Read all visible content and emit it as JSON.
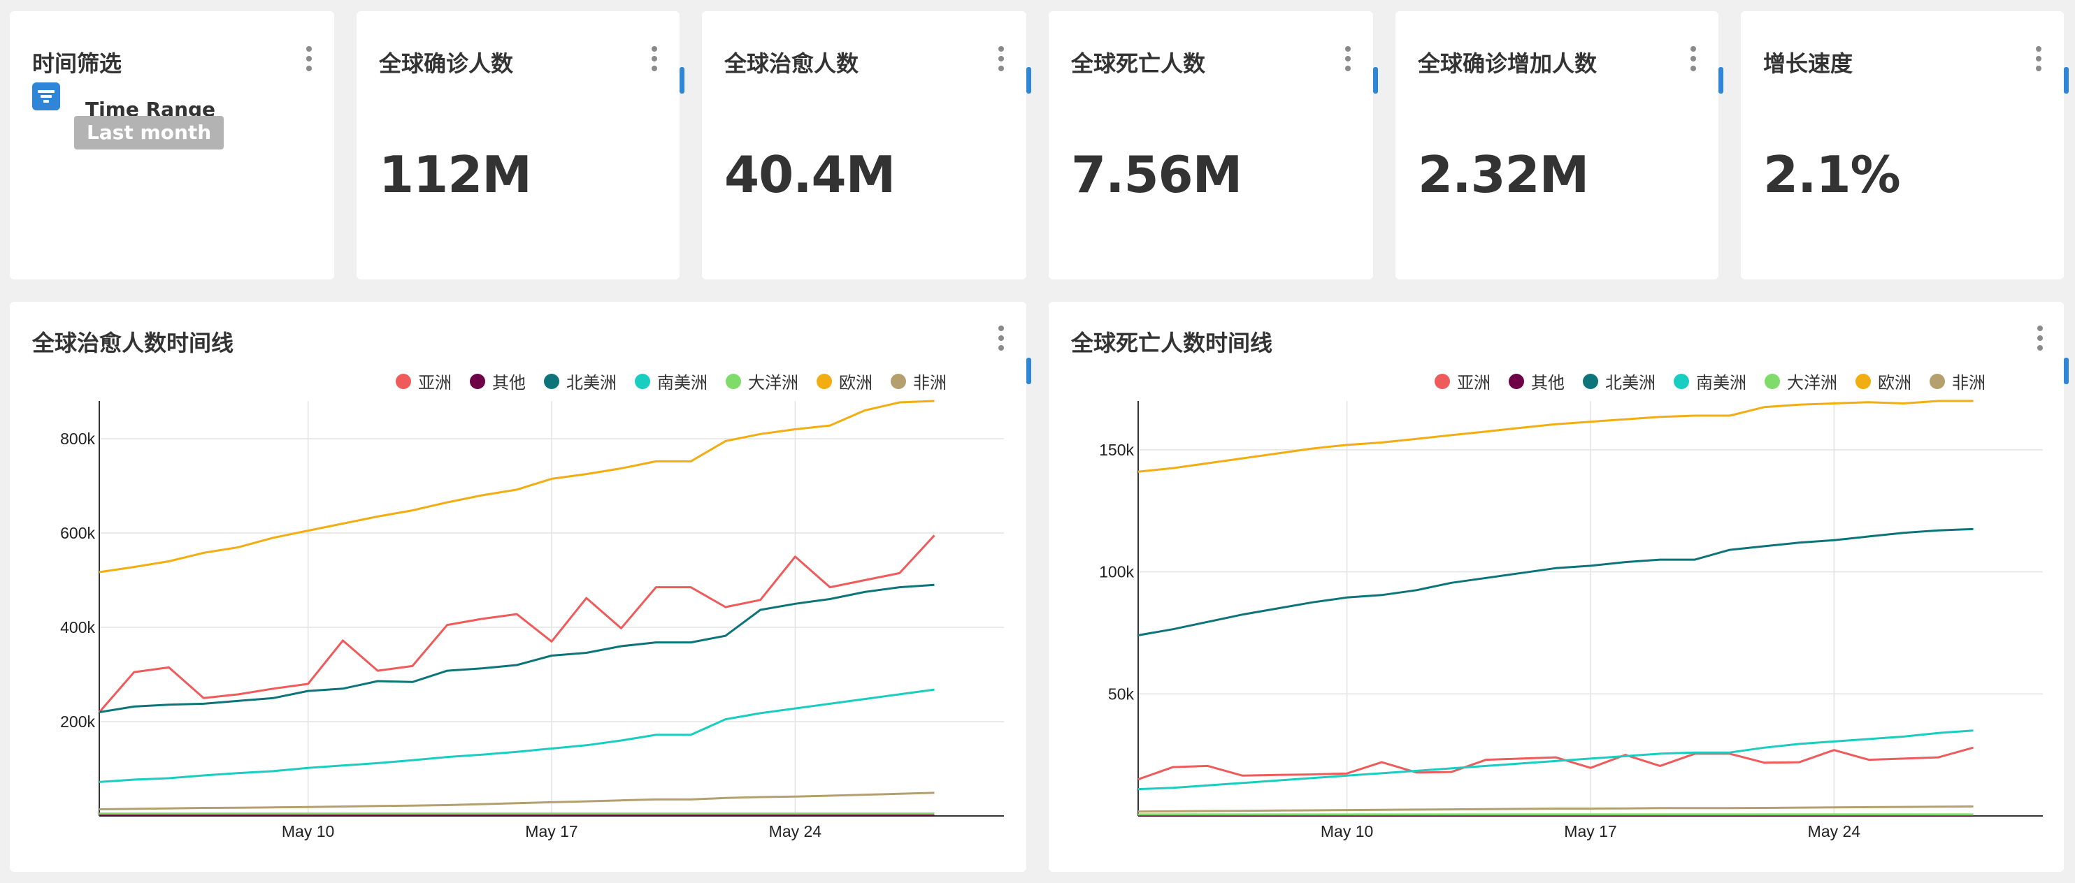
{
  "colors": {
    "accent": "#2f86d8",
    "chip_bg": "#b3b3b3"
  },
  "filter_card": {
    "title": "时间筛选",
    "filter_icon": "filter-icon",
    "filter_name": "Time Range",
    "filter_value": "Last month"
  },
  "kpis": [
    {
      "title": "全球确诊人数",
      "value": "112M"
    },
    {
      "title": "全球治愈人数",
      "value": "40.4M"
    },
    {
      "title": "全球死亡人数",
      "value": "7.56M"
    },
    {
      "title": "全球确诊增加人数",
      "value": "2.32M"
    },
    {
      "title": "增长速度",
      "value": "2.1%"
    }
  ],
  "legend": [
    {
      "name": "亚洲",
      "color": "#ef5b5b"
    },
    {
      "name": "其他",
      "color": "#6d0047"
    },
    {
      "name": "北美洲",
      "color": "#0d7579"
    },
    {
      "name": "南美洲",
      "color": "#19cdc0"
    },
    {
      "name": "大洋洲",
      "color": "#7fdb6a"
    },
    {
      "name": "欧洲",
      "color": "#f2ad12"
    },
    {
      "name": "非洲",
      "color": "#b4a06e"
    }
  ],
  "chart_data": [
    {
      "type": "line",
      "title": "全球治愈人数时间线",
      "x": [
        "2021-05-02",
        "2021-05-03",
        "2021-05-04",
        "2021-05-05",
        "2021-05-06",
        "2021-05-07",
        "2021-05-08",
        "2021-05-09",
        "2021-05-10",
        "2021-05-11",
        "2021-05-12",
        "2021-05-13",
        "2021-05-14",
        "2021-05-15",
        "2021-05-16",
        "2021-05-17",
        "2021-05-18",
        "2021-05-19",
        "2021-05-20",
        "2021-05-21",
        "2021-05-22",
        "2021-05-23",
        "2021-05-24",
        "2021-05-25",
        "2021-05-26",
        "2021-05-27",
        "2021-05-28"
      ],
      "x_ticks": [
        {
          "date": "2021-05-08",
          "label": "May 10"
        },
        {
          "date": "2021-05-15",
          "label": "May 17"
        },
        {
          "date": "2021-05-22",
          "label": "May 24"
        }
      ],
      "y_ticks": [
        {
          "value": 200000,
          "label": "200k"
        },
        {
          "value": 400000,
          "label": "400k"
        },
        {
          "value": 600000,
          "label": "600k"
        },
        {
          "value": 800000,
          "label": "800k"
        }
      ],
      "ylim": [
        0,
        880000
      ],
      "grid": true,
      "legend_position": "top-right",
      "series": [
        {
          "name": "亚洲",
          "values": [
            220000,
            305000,
            315000,
            250000,
            258000,
            270000,
            280000,
            372000,
            308000,
            318000,
            405000,
            418000,
            428000,
            370000,
            462000,
            398000,
            485000,
            485000,
            443000,
            458000,
            550000,
            485000,
            500000,
            515000,
            595000,
            null,
            null
          ]
        },
        {
          "name": "其他",
          "values": [
            2000,
            2000,
            2000,
            2000,
            2000,
            2000,
            2000,
            2000,
            2000,
            2000,
            2000,
            2000,
            2000,
            2000,
            2000,
            2000,
            2000,
            2000,
            2000,
            2000,
            2000,
            2000,
            2000,
            2000,
            2000,
            null,
            null
          ]
        },
        {
          "name": "北美洲",
          "values": [
            220000,
            232000,
            236000,
            238000,
            244000,
            250000,
            265000,
            270000,
            286000,
            284000,
            308000,
            313000,
            320000,
            340000,
            346000,
            360000,
            368000,
            368000,
            382000,
            437000,
            450000,
            460000,
            475000,
            485000,
            490000,
            null,
            null
          ]
        },
        {
          "name": "南美洲",
          "values": [
            72000,
            77000,
            80000,
            86000,
            91000,
            95000,
            102000,
            107000,
            112000,
            118000,
            125000,
            130000,
            136000,
            143000,
            150000,
            160000,
            172000,
            172000,
            205000,
            218000,
            228000,
            238000,
            248000,
            258000,
            268000,
            null,
            null
          ]
        },
        {
          "name": "大洋洲",
          "values": [
            5000,
            5000,
            5000,
            5000,
            5000,
            5000,
            5000,
            5000,
            5000,
            5000,
            5000,
            5000,
            5000,
            5000,
            5000,
            5000,
            5000,
            5000,
            5000,
            5000,
            5000,
            5000,
            5000,
            5000,
            5000,
            null,
            null
          ]
        },
        {
          "name": "欧洲",
          "values": [
            517000,
            528000,
            540000,
            558000,
            570000,
            590000,
            605000,
            620000,
            635000,
            648000,
            665000,
            680000,
            692000,
            715000,
            725000,
            737000,
            752000,
            752000,
            795000,
            810000,
            820000,
            828000,
            860000,
            877000,
            880000,
            null,
            null
          ]
        },
        {
          "name": "非洲",
          "values": [
            14000,
            15000,
            16000,
            17000,
            17500,
            18000,
            19000,
            20000,
            21000,
            22000,
            23000,
            25000,
            27000,
            29000,
            31000,
            33000,
            35000,
            35000,
            38000,
            40000,
            41000,
            43000,
            45000,
            47000,
            49000,
            null,
            null
          ]
        }
      ]
    },
    {
      "type": "line",
      "title": "全球死亡人数时间线",
      "x": [
        "2021-05-02",
        "2021-05-03",
        "2021-05-04",
        "2021-05-05",
        "2021-05-06",
        "2021-05-07",
        "2021-05-08",
        "2021-05-09",
        "2021-05-10",
        "2021-05-11",
        "2021-05-12",
        "2021-05-13",
        "2021-05-14",
        "2021-05-15",
        "2021-05-16",
        "2021-05-17",
        "2021-05-18",
        "2021-05-19",
        "2021-05-20",
        "2021-05-21",
        "2021-05-22",
        "2021-05-23",
        "2021-05-24",
        "2021-05-25",
        "2021-05-26",
        "2021-05-27",
        "2021-05-28"
      ],
      "x_ticks": [
        {
          "date": "2021-05-08",
          "label": "May 10"
        },
        {
          "date": "2021-05-15",
          "label": "May 17"
        },
        {
          "date": "2021-05-22",
          "label": "May 24"
        }
      ],
      "y_ticks": [
        {
          "value": 50000,
          "label": "50k"
        },
        {
          "value": 100000,
          "label": "100k"
        },
        {
          "value": 150000,
          "label": "150k"
        }
      ],
      "ylim": [
        0,
        170000
      ],
      "grid": true,
      "legend_position": "top-right",
      "series": [
        {
          "name": "亚洲",
          "values": [
            15000,
            20000,
            20500,
            16500,
            16800,
            17000,
            17400,
            22000,
            17800,
            18000,
            23000,
            23500,
            24000,
            19700,
            25000,
            20500,
            25500,
            25500,
            21800,
            22000,
            27000,
            23000,
            23500,
            24000,
            28000,
            null,
            null
          ]
        },
        {
          "name": "其他",
          "values": [
            200,
            200,
            200,
            200,
            200,
            200,
            200,
            200,
            200,
            200,
            200,
            200,
            200,
            200,
            200,
            200,
            200,
            200,
            200,
            200,
            200,
            200,
            200,
            200,
            200,
            null,
            null
          ]
        },
        {
          "name": "北美洲",
          "values": [
            74000,
            76500,
            79500,
            82500,
            85000,
            87500,
            89500,
            90500,
            92500,
            95500,
            97500,
            99500,
            101500,
            102500,
            104000,
            105000,
            105000,
            109000,
            110500,
            112000,
            113000,
            114500,
            116000,
            117000,
            117500,
            null,
            null
          ]
        },
        {
          "name": "南美洲",
          "values": [
            11000,
            11500,
            12500,
            13500,
            14500,
            15500,
            16500,
            17500,
            18500,
            19500,
            20500,
            21500,
            22500,
            23500,
            24500,
            25500,
            26000,
            26000,
            28000,
            29500,
            30500,
            31500,
            32500,
            34000,
            35000,
            null,
            null
          ]
        },
        {
          "name": "大洋洲",
          "values": [
            600,
            600,
            600,
            600,
            600,
            600,
            600,
            600,
            600,
            600,
            600,
            600,
            600,
            600,
            600,
            600,
            600,
            600,
            600,
            600,
            600,
            600,
            600,
            600,
            600,
            null,
            null
          ]
        },
        {
          "name": "欧洲",
          "values": [
            141000,
            142500,
            144500,
            146500,
            148500,
            150500,
            152000,
            153000,
            154500,
            156000,
            157500,
            159000,
            160500,
            161500,
            162500,
            163500,
            164000,
            164000,
            167500,
            168500,
            169000,
            169500,
            169000,
            170000,
            170000,
            null,
            null
          ]
        },
        {
          "name": "非洲",
          "values": [
            1800,
            1900,
            2000,
            2100,
            2200,
            2300,
            2400,
            2500,
            2600,
            2700,
            2800,
            2900,
            3000,
            3000,
            3100,
            3200,
            3200,
            3200,
            3300,
            3400,
            3500,
            3600,
            3700,
            3800,
            3900,
            null,
            null
          ]
        }
      ]
    }
  ]
}
